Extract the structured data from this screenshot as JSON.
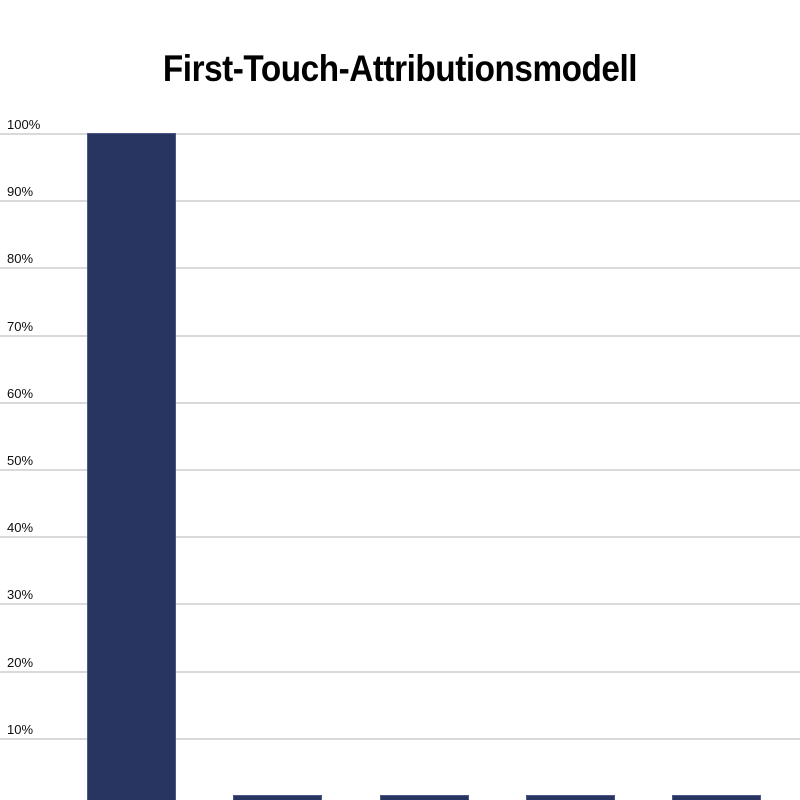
{
  "chart_data": {
    "type": "bar",
    "title": "First-Touch-Attributionsmodell",
    "categories": [
      "",
      "",
      "",
      "",
      ""
    ],
    "values": [
      100,
      1.5,
      1.5,
      1.5,
      1.5
    ],
    "xlabel": "",
    "ylabel": "",
    "ylim": [
      0,
      100
    ],
    "y_ticks": [
      {
        "label": "100%",
        "value": 100
      },
      {
        "label": "90%",
        "value": 90
      },
      {
        "label": "80%",
        "value": 80
      },
      {
        "label": "70%",
        "value": 70
      },
      {
        "label": "60%",
        "value": 60
      },
      {
        "label": "50%",
        "value": 50
      },
      {
        "label": "40%",
        "value": 40
      },
      {
        "label": "30%",
        "value": 30
      },
      {
        "label": "20%",
        "value": 20
      },
      {
        "label": "10%",
        "value": 10
      }
    ],
    "grid": true,
    "legend": false,
    "colors": {
      "bar_fill": "#283561",
      "bar_border": "#4a5787",
      "gridline": "#d9d9d9",
      "title_text": "#000000",
      "tick_text": "#0d0d0d",
      "background": "#ffffff"
    }
  }
}
